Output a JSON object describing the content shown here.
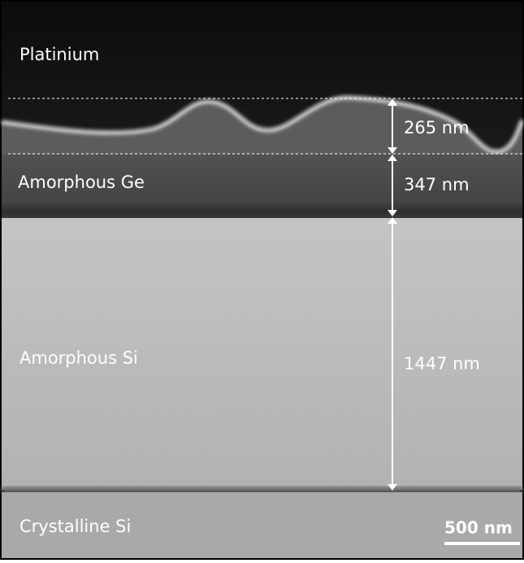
{
  "layers": [
    {
      "label": "Platinium"
    },
    {
      "label": "Amorphous Ge"
    },
    {
      "label": "Amorphous Si"
    },
    {
      "label": "Crystalline Si"
    }
  ],
  "measurements": [
    {
      "label": "265 nm"
    },
    {
      "label": "347 nm"
    },
    {
      "label": "1447 nm"
    }
  ],
  "scale_bar": {
    "label": "500 nm"
  }
}
